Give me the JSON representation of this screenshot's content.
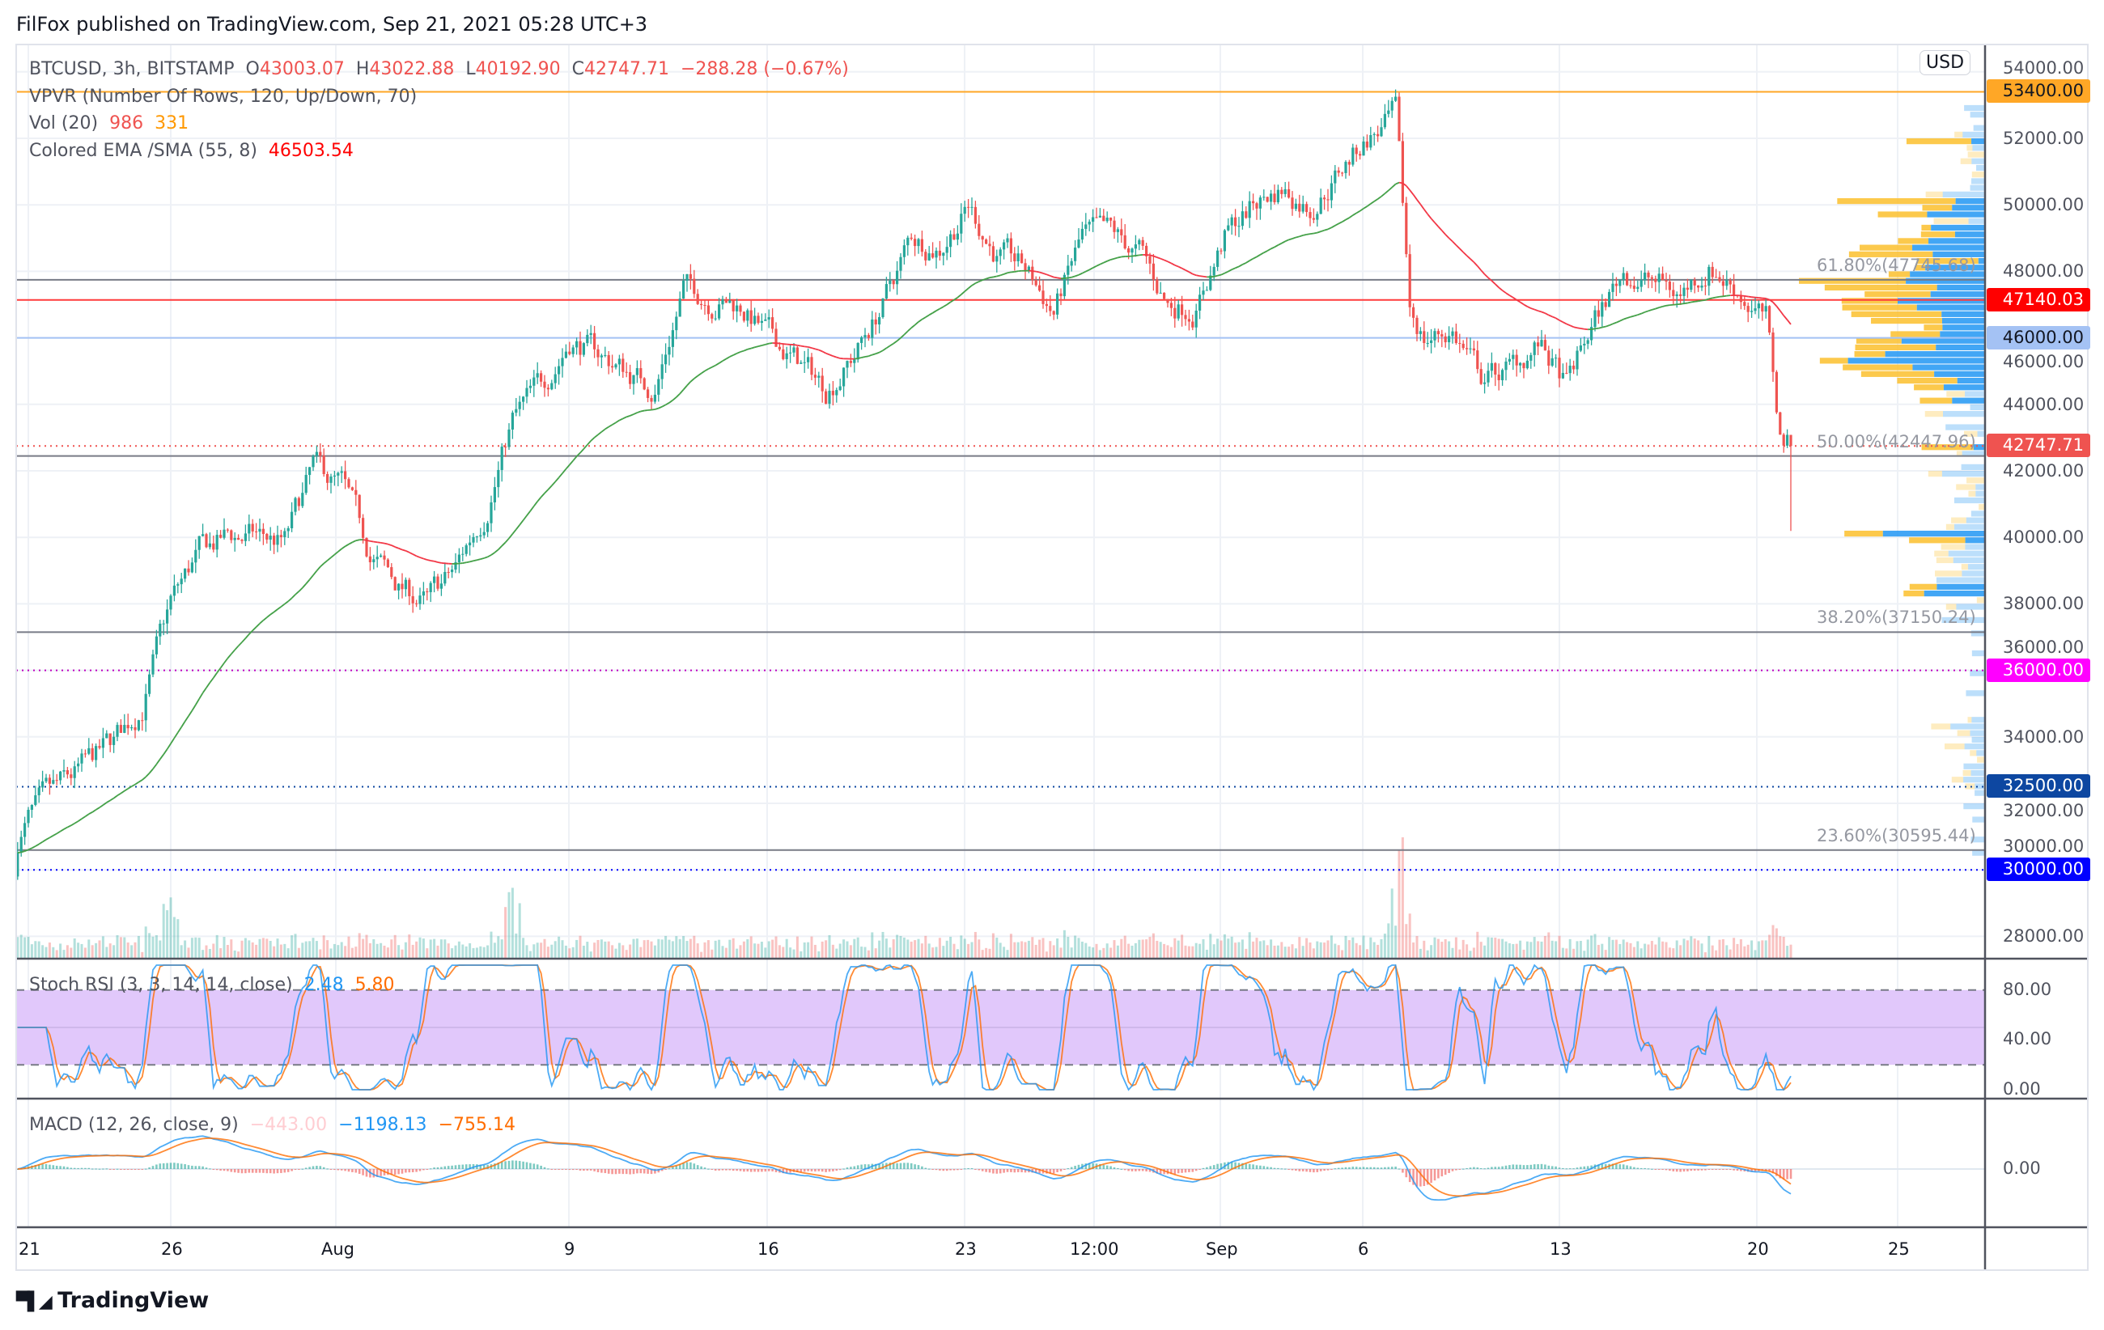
{
  "header": {
    "published": "FilFox published on TradingView.com, Sep 21, 2021 05:28 UTC+3"
  },
  "legend": {
    "symbol": "BTCUSD, 3h, BITSTAMP",
    "o_label": "O",
    "o": "43003.07",
    "h_label": "H",
    "h": "43022.88",
    "l_label": "L",
    "l": "40192.90",
    "c_label": "C",
    "c": "42747.71",
    "change": "−288.28 (−0.67%)",
    "vpvr": "VPVR (Number Of Rows, 120, Up/Down, 70)",
    "vol": "Vol (20)",
    "vol_v1": "986",
    "vol_v2": "331",
    "ema": "Colored EMA /SMA (55, 8)",
    "ema_v": "46503.54",
    "stoch": "Stoch RSI (3, 3, 14, 14, close)",
    "stoch_k": "2.48",
    "stoch_d": "5.80",
    "macd": "MACD (12, 26, close, 9)",
    "macd_hist": "−443.00",
    "macd_v": "−1198.13",
    "macd_sig": "−755.14"
  },
  "price_axis": {
    "currency": "USD",
    "ticks": [
      "54000.00",
      "52000.00",
      "50000.00",
      "48000.00",
      "46000.00",
      "44000.00",
      "42000.00",
      "40000.00",
      "38000.00",
      "36000.00",
      "34000.00",
      "32000.00",
      "30000.00",
      "28000.00"
    ],
    "stoch_ticks": [
      "80.00",
      "40.00",
      "0.00"
    ],
    "macd_ticks": [
      "0.00"
    ]
  },
  "time_axis": {
    "labels": [
      "21",
      "26",
      "Aug",
      "9",
      "16",
      "23",
      "12:00",
      "Sep",
      "6",
      "13",
      "20",
      "25"
    ]
  },
  "price_boxes": [
    {
      "label": "53400.00",
      "price": 53400,
      "bg": "#ffa726",
      "fg": "#131722",
      "line": "#ffa726",
      "style": "solid"
    },
    {
      "label": "47140.03",
      "price": 47140.03,
      "bg": "#ff0000",
      "fg": "#ffffff",
      "line": "#ff3b3b",
      "style": "solid"
    },
    {
      "label": "46000.00",
      "price": 46000,
      "bg": "#a4c2f4",
      "fg": "#131722",
      "line": "#a4c2f4",
      "style": "solid"
    },
    {
      "label": "42747.71",
      "price": 42747.71,
      "bg": "#ef5350",
      "fg": "#ffffff",
      "line": "#ef5350",
      "style": "dotted"
    },
    {
      "label": "36000.00",
      "price": 36000,
      "bg": "#ff00ff",
      "fg": "#ffffff",
      "line": "#c000c0",
      "style": "dotted"
    },
    {
      "label": "32500.00",
      "price": 32500,
      "bg": "#0d47a1",
      "fg": "#ffffff",
      "line": "#0d47a1",
      "style": "dotted"
    },
    {
      "label": "30000.00",
      "price": 30000,
      "bg": "#0000ff",
      "fg": "#ffffff",
      "line": "#0000ff",
      "style": "dotted"
    }
  ],
  "fib_levels": [
    {
      "label": "61.80%(47745.68)",
      "price": 47745.68
    },
    {
      "label": "50.00%(42447.96)",
      "price": 42447.96
    },
    {
      "label": "38.20%(37150.24)",
      "price": 37150.24
    },
    {
      "label": "23.60%(30595.44)",
      "price": 30595.44
    }
  ],
  "colors": {
    "up": "#26a69a",
    "down": "#ef5350",
    "ema_up": "#43a047",
    "ema_down": "#f23645",
    "vp_up": "#2196f3",
    "vp_down": "#fbc02d",
    "stoch_k": "#2196f3",
    "stoch_d": "#ff6d00",
    "band": "#e1c8fb"
  },
  "chart_data": {
    "type": "candlestick",
    "symbol": "BTCUSD",
    "interval": "3h",
    "ylim": [
      27500,
      54500
    ],
    "x_range": [
      "2021-07-20",
      "2021-09-21"
    ],
    "key_closes": [
      [
        "Jul 20",
        29800
      ],
      [
        "Jul 21",
        31500
      ],
      [
        "Jul 22",
        32300
      ],
      [
        "Jul 24",
        33800
      ],
      [
        "Jul 25",
        35000
      ],
      [
        "Jul 26",
        38000
      ],
      [
        "Jul 27",
        39500
      ],
      [
        "Jul 28",
        40000
      ],
      [
        "Jul 29",
        40000
      ],
      [
        "Jul 30",
        39800
      ],
      [
        "Jul 31",
        42000
      ],
      [
        "Aug 1",
        41500
      ],
      [
        "Aug 2",
        39500
      ],
      [
        "Aug 3",
        38500
      ],
      [
        "Aug 4",
        38000
      ],
      [
        "Aug 5",
        39000
      ],
      [
        "Aug 6",
        40800
      ],
      [
        "Aug 7",
        43500
      ],
      [
        "Aug 8",
        44500
      ],
      [
        "Aug 9",
        46000
      ],
      [
        "Aug 10",
        45500
      ],
      [
        "Aug 12",
        44500
      ],
      [
        "Aug 13",
        47500
      ],
      [
        "Aug 14",
        47200
      ],
      [
        "Aug 15",
        47000
      ],
      [
        "Aug 16",
        46000
      ],
      [
        "Aug 18",
        44500
      ],
      [
        "Aug 19",
        45500
      ],
      [
        "Aug 20",
        47000
      ],
      [
        "Aug 21",
        49000
      ],
      [
        "Aug 22",
        48800
      ],
      [
        "Aug 23",
        50000
      ],
      [
        "Aug 24",
        48500
      ],
      [
        "Aug 25",
        48000
      ],
      [
        "Aug 26",
        46800
      ],
      [
        "Aug 27",
        49000
      ],
      [
        "Aug 28",
        49000
      ],
      [
        "Aug 29",
        48500
      ],
      [
        "Aug 30",
        47000
      ],
      [
        "Aug 31",
        47000
      ],
      [
        "Sep 1",
        49000
      ],
      [
        "Sep 2",
        50000
      ],
      [
        "Sep 3",
        50500
      ],
      [
        "Sep 4",
        50000
      ],
      [
        "Sep 5",
        51000
      ],
      [
        "Sep 6",
        52000
      ],
      [
        "Sep 7",
        52600
      ],
      [
        "Sep 7 12:00",
        46800
      ],
      [
        "Sep 8",
        46000
      ],
      [
        "Sep 9",
        46200
      ],
      [
        "Sep 10",
        44800
      ],
      [
        "Sep 11",
        45000
      ],
      [
        "Sep 12",
        45800
      ],
      [
        "Sep 13",
        44500
      ],
      [
        "Sep 14",
        46500
      ],
      [
        "Sep 15",
        48000
      ],
      [
        "Sep 16",
        47700
      ],
      [
        "Sep 17",
        47300
      ],
      [
        "Sep 18",
        48200
      ],
      [
        "Sep 19",
        47500
      ],
      [
        "Sep 20",
        46500
      ],
      [
        "Sep 20 12:00",
        43000
      ],
      [
        "Sep 21",
        42747.71
      ]
    ]
  },
  "footer": {
    "brand": "TradingView"
  }
}
